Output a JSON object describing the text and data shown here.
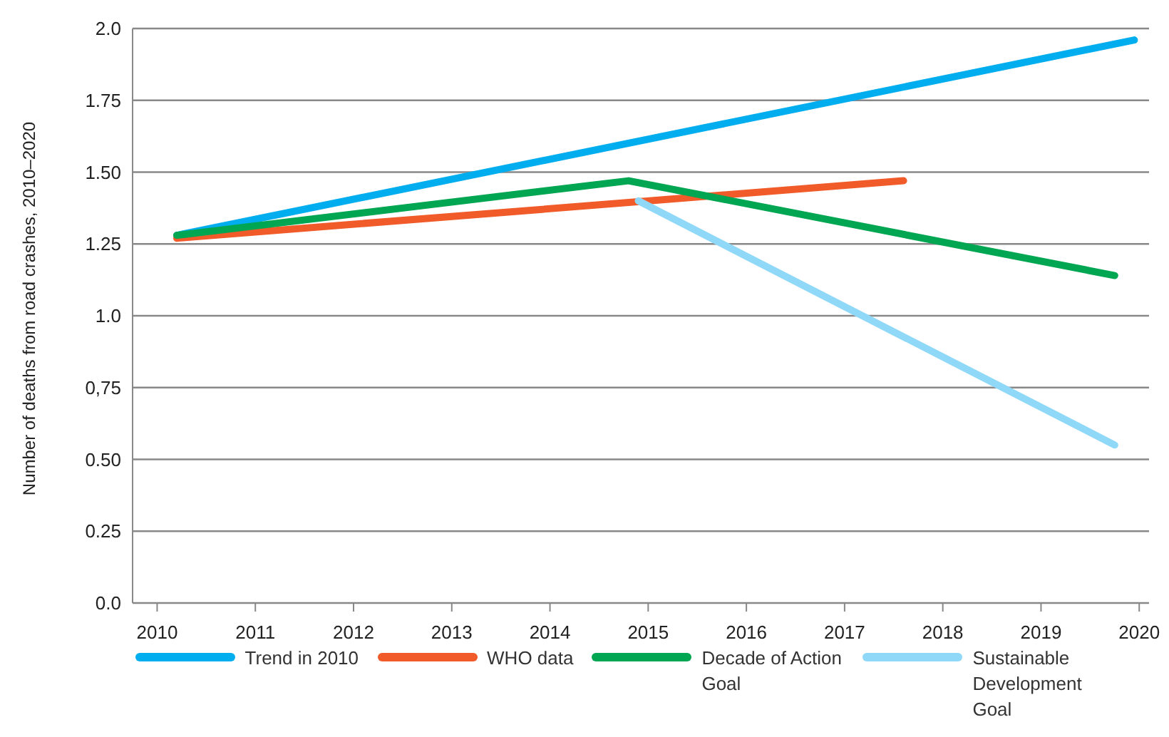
{
  "chart_data": {
    "type": "line",
    "ylabel": "Number of deaths from road crashes, 2010–2020",
    "xlim": [
      2009.75,
      2020.1
    ],
    "xticks": [
      2010,
      2011,
      2012,
      2013,
      2014,
      2015,
      2016,
      2017,
      2018,
      2019,
      2020
    ],
    "ylim": [
      0,
      2
    ],
    "yticks": [
      {
        "value": 0,
        "label": "0.0"
      },
      0.25,
      {
        "value": 0.5,
        "label": "0.50"
      },
      {
        "value": 0.75,
        "label": "0,75"
      },
      {
        "value": 1,
        "label": "1.0"
      },
      1.25,
      {
        "value": 1.5,
        "label": "1.50"
      },
      1.75,
      {
        "value": 2,
        "label": "2.0"
      }
    ],
    "grid": "y",
    "legend": "bottom",
    "marker": "none",
    "line_style": "solid",
    "series": [
      {
        "name": "Trend in 2010",
        "color": "#00aeef",
        "x": [
          2010.2,
          2019.95
        ],
        "values": [
          1.28,
          1.96
        ]
      },
      {
        "name": "WHO data",
        "color": "#f15a29",
        "x": [
          2010.2,
          2017.6
        ],
        "values": [
          1.27,
          1.47
        ]
      },
      {
        "name": "Decade of Action Goal",
        "color": "#00a651",
        "x": [
          2010.2,
          2014.8,
          2019.75
        ],
        "values": [
          1.28,
          1.47,
          1.14
        ]
      },
      {
        "name": "Sustainable Development Goal",
        "color": "#8fd8f8",
        "x": [
          2014.9,
          2019.75
        ],
        "values": [
          1.4,
          0.55
        ]
      }
    ]
  }
}
